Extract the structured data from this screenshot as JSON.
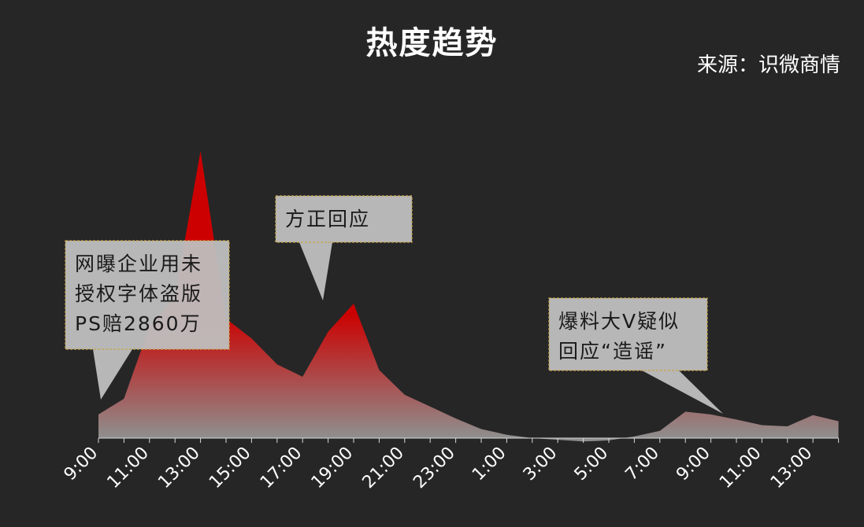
{
  "chart_data": {
    "type": "area",
    "title": "热度趋势",
    "source": "来源：识微商情",
    "x": [
      "9:00",
      "10:00",
      "11:00",
      "12:00",
      "13:00",
      "14:00",
      "15:00",
      "16:00",
      "17:00",
      "18:00",
      "19:00",
      "20:00",
      "21:00",
      "22:00",
      "23:00",
      "0:00",
      "1:00",
      "2:00",
      "3:00",
      "4:00",
      "5:00",
      "6:00",
      "7:00",
      "8:00",
      "9:00",
      "10:00",
      "11:00",
      "12:00",
      "13:00",
      "14:00"
    ],
    "x_tick_labels": [
      "9:00",
      "11:00",
      "13:00",
      "15:00",
      "17:00",
      "19:00",
      "21:00",
      "23:00",
      "1:00",
      "3:00",
      "5:00",
      "7:00",
      "9:00",
      "11:00",
      "13:00"
    ],
    "values": [
      42,
      70,
      198,
      252,
      510,
      212,
      177,
      131,
      109,
      189,
      239,
      121,
      77,
      56,
      35,
      16,
      6,
      0,
      -3,
      -6,
      -4,
      3,
      13,
      47,
      42,
      33,
      23,
      21,
      41,
      30
    ],
    "ylim": [
      -8,
      520
    ],
    "colors": {
      "top": "#cc0000",
      "bottom": "#8f8f8f",
      "background": "#262626",
      "callout": "#bfbfbf",
      "callout_border": "#c9a64a"
    },
    "annotations": [
      {
        "lines": [
          "网曝企业用未",
          "授权字体盗版",
          "PS赔2860万"
        ],
        "x_index": 0
      },
      {
        "lines": [
          "方正回应"
        ],
        "x_index": 9
      },
      {
        "lines": [
          "爆料大V疑似",
          "回应“造谣”"
        ],
        "x_index": 25
      }
    ]
  }
}
